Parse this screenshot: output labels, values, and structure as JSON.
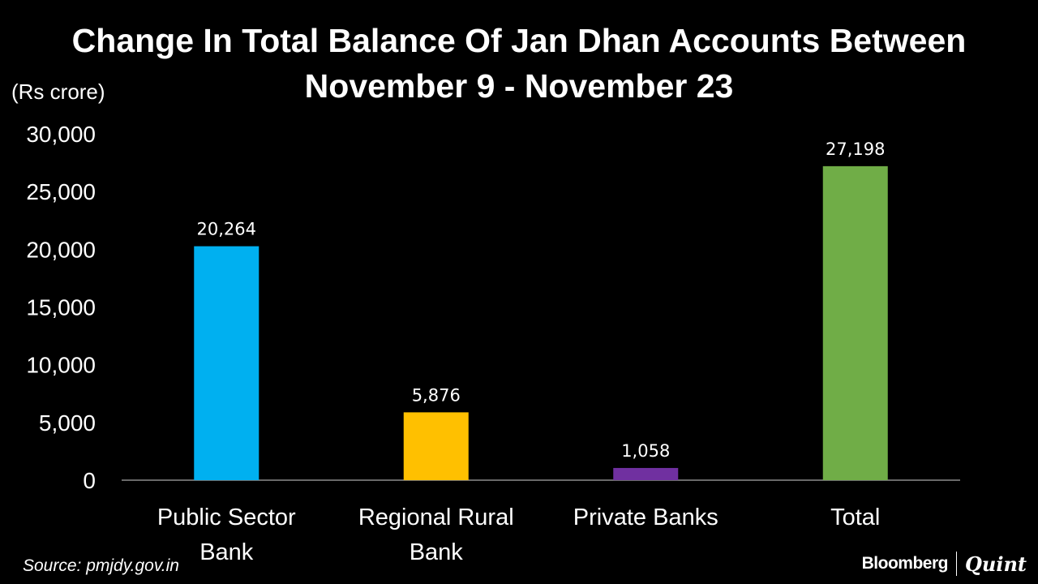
{
  "title_line1": "Change In Total Balance Of Jan Dhan Accounts Between",
  "title_line2": "November 9 - November 23",
  "unit_label": "(Rs crore)",
  "source": "Source: pmjdy.gov.in",
  "brand": {
    "primary": "Bloomberg",
    "secondary": "Quint"
  },
  "chart_data": {
    "type": "bar",
    "categories": [
      [
        "Public Sector",
        "Bank"
      ],
      [
        "Regional Rural",
        "Bank"
      ],
      [
        "Private Banks"
      ],
      [
        "Total"
      ]
    ],
    "values": [
      20264,
      5876,
      1058,
      27198
    ],
    "value_labels": [
      "20,264",
      "5,876",
      "1,058",
      "27,198"
    ],
    "colors": [
      "#00b0f0",
      "#ffc000",
      "#7030a0",
      "#70ad47"
    ],
    "yticks": [
      0,
      5000,
      10000,
      15000,
      20000,
      25000,
      30000
    ],
    "ytick_labels": [
      "0",
      "5,000",
      "10,000",
      "15,000",
      "20,000",
      "25,000",
      "30,000"
    ],
    "ylim": [
      0,
      30000
    ],
    "ylabel": "(Rs crore)",
    "grid": false,
    "legend": "none"
  }
}
